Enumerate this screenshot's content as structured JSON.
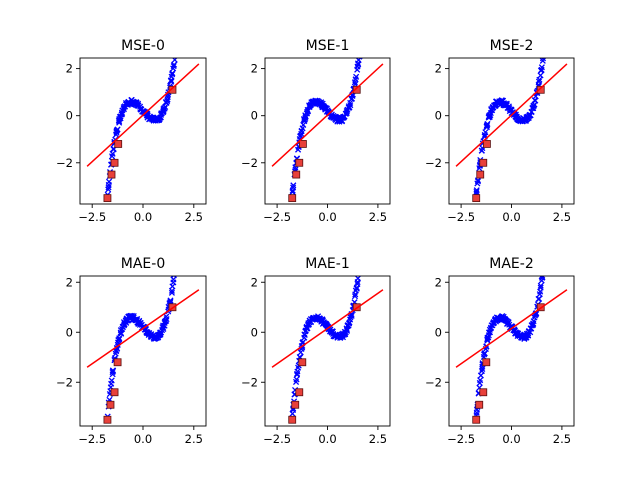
{
  "figure": {
    "background": "#ffffff"
  },
  "chart_data": [
    {
      "type": "scatter",
      "title": "MSE-0",
      "xlim": [
        -3.1,
        3.1
      ],
      "ylim": [
        -3.75,
        2.45
      ],
      "xticks": [
        -2.5,
        0.0,
        2.5
      ],
      "xtick_labels": [
        "−2.5",
        "0.0",
        "2.5"
      ],
      "yticks": [
        -2,
        0,
        2
      ],
      "ytick_labels": [
        "−2",
        "0",
        "2"
      ],
      "series": [
        {
          "kind": "points",
          "marker": "x",
          "color": "#0000ff",
          "curve": "cubic",
          "x_range": [
            -1.75,
            1.7
          ]
        },
        {
          "kind": "outliers",
          "marker": "square",
          "color": "#e8403a",
          "x": [
            -1.75,
            -1.55,
            -1.4,
            -1.22,
            1.45
          ],
          "y": [
            -3.5,
            -2.5,
            -2.0,
            -1.2,
            1.1
          ]
        },
        {
          "kind": "fit",
          "color": "#ff0000",
          "x": [
            -2.75,
            2.75
          ],
          "y": [
            -2.15,
            2.2
          ]
        }
      ]
    },
    {
      "type": "scatter",
      "title": "MSE-1",
      "xlim": [
        -3.1,
        3.1
      ],
      "ylim": [
        -3.75,
        2.45
      ],
      "xticks": [
        -2.5,
        0.0,
        2.5
      ],
      "xtick_labels": [
        "−2.5",
        "0.0",
        "2.5"
      ],
      "yticks": [
        -2,
        0,
        2
      ],
      "ytick_labels": [
        "−2",
        "0",
        "2"
      ],
      "series": [
        {
          "kind": "points",
          "marker": "x",
          "color": "#0000ff",
          "curve": "cubic",
          "x_range": [
            -1.75,
            1.7
          ]
        },
        {
          "kind": "outliers",
          "marker": "square",
          "color": "#e8403a",
          "x": [
            -1.75,
            -1.55,
            -1.4,
            -1.22,
            1.45
          ],
          "y": [
            -3.5,
            -2.5,
            -2.0,
            -1.2,
            1.1
          ]
        },
        {
          "kind": "fit",
          "color": "#ff0000",
          "x": [
            -2.75,
            2.75
          ],
          "y": [
            -2.15,
            2.2
          ]
        }
      ]
    },
    {
      "type": "scatter",
      "title": "MSE-2",
      "xlim": [
        -3.1,
        3.1
      ],
      "ylim": [
        -3.75,
        2.45
      ],
      "xticks": [
        -2.5,
        0.0,
        2.5
      ],
      "xtick_labels": [
        "−2.5",
        "0.0",
        "2.5"
      ],
      "yticks": [
        -2,
        0,
        2
      ],
      "ytick_labels": [
        "−2",
        "0",
        "2"
      ],
      "series": [
        {
          "kind": "points",
          "marker": "x",
          "color": "#0000ff",
          "curve": "cubic",
          "x_range": [
            -1.75,
            1.7
          ]
        },
        {
          "kind": "outliers",
          "marker": "square",
          "color": "#e8403a",
          "x": [
            -1.75,
            -1.55,
            -1.4,
            -1.22,
            1.45
          ],
          "y": [
            -3.5,
            -2.5,
            -2.0,
            -1.2,
            1.1
          ]
        },
        {
          "kind": "fit",
          "color": "#ff0000",
          "x": [
            -2.75,
            2.75
          ],
          "y": [
            -2.15,
            2.2
          ]
        }
      ]
    },
    {
      "type": "scatter",
      "title": "MAE-0",
      "xlim": [
        -3.1,
        3.1
      ],
      "ylim": [
        -3.75,
        2.25
      ],
      "xticks": [
        -2.5,
        0.0,
        2.5
      ],
      "xtick_labels": [
        "−2.5",
        "0.0",
        "2.5"
      ],
      "yticks": [
        -2,
        0,
        2
      ],
      "ytick_labels": [
        "−2",
        "0",
        "2"
      ],
      "series": [
        {
          "kind": "points",
          "marker": "x",
          "color": "#0000ff",
          "curve": "cubic",
          "x_range": [
            -1.75,
            1.7
          ]
        },
        {
          "kind": "outliers",
          "marker": "square",
          "color": "#e8403a",
          "x": [
            -1.75,
            -1.6,
            -1.4,
            -1.25,
            1.45
          ],
          "y": [
            -3.5,
            -2.9,
            -2.4,
            -1.2,
            1.0
          ]
        },
        {
          "kind": "fit",
          "color": "#ff0000",
          "x": [
            -2.75,
            2.75
          ],
          "y": [
            -1.4,
            1.7
          ]
        }
      ]
    },
    {
      "type": "scatter",
      "title": "MAE-1",
      "xlim": [
        -3.1,
        3.1
      ],
      "ylim": [
        -3.75,
        2.25
      ],
      "xticks": [
        -2.5,
        0.0,
        2.5
      ],
      "xtick_labels": [
        "−2.5",
        "0.0",
        "2.5"
      ],
      "yticks": [
        -2,
        0,
        2
      ],
      "ytick_labels": [
        "−2",
        "0",
        "2"
      ],
      "series": [
        {
          "kind": "points",
          "marker": "x",
          "color": "#0000ff",
          "curve": "cubic",
          "x_range": [
            -1.75,
            1.7
          ]
        },
        {
          "kind": "outliers",
          "marker": "square",
          "color": "#e8403a",
          "x": [
            -1.75,
            -1.6,
            -1.4,
            -1.25,
            1.45
          ],
          "y": [
            -3.5,
            -2.9,
            -2.4,
            -1.2,
            1.0
          ]
        },
        {
          "kind": "fit",
          "color": "#ff0000",
          "x": [
            -2.75,
            2.75
          ],
          "y": [
            -1.4,
            1.7
          ]
        }
      ]
    },
    {
      "type": "scatter",
      "title": "MAE-2",
      "xlim": [
        -3.1,
        3.1
      ],
      "ylim": [
        -3.75,
        2.25
      ],
      "xticks": [
        -2.5,
        0.0,
        2.5
      ],
      "xtick_labels": [
        "−2.5",
        "0.0",
        "2.5"
      ],
      "yticks": [
        -2,
        0,
        2
      ],
      "ytick_labels": [
        "−2",
        "0",
        "2"
      ],
      "series": [
        {
          "kind": "points",
          "marker": "x",
          "color": "#0000ff",
          "curve": "cubic",
          "x_range": [
            -1.75,
            1.7
          ]
        },
        {
          "kind": "outliers",
          "marker": "square",
          "color": "#e8403a",
          "x": [
            -1.75,
            -1.6,
            -1.4,
            -1.25,
            1.45
          ],
          "y": [
            -3.5,
            -2.9,
            -2.4,
            -1.2,
            1.0
          ]
        },
        {
          "kind": "fit",
          "color": "#ff0000",
          "x": [
            -2.75,
            2.75
          ],
          "y": [
            -1.4,
            1.7
          ]
        }
      ]
    }
  ]
}
